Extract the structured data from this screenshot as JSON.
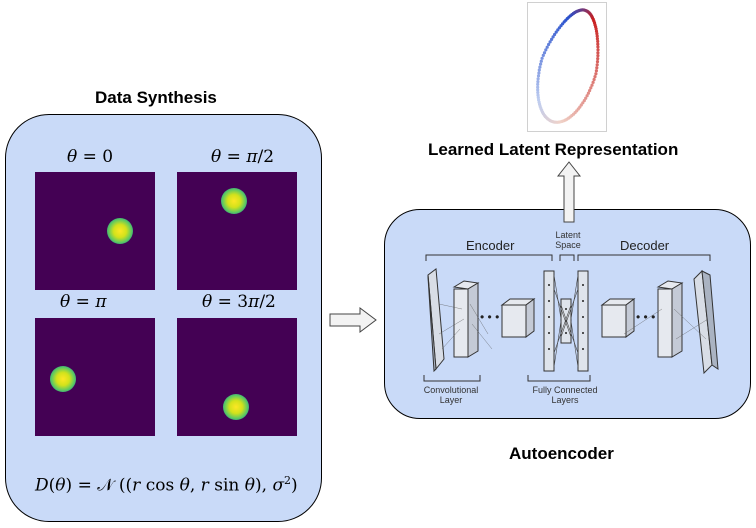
{
  "data_synthesis": {
    "title": "Data Synthesis",
    "panels": [
      {
        "label": "θ = 0"
      },
      {
        "label": "θ = π/2"
      },
      {
        "label": "θ = π"
      },
      {
        "label": "θ = 3π/2"
      }
    ],
    "formula": "D(θ) = 𝒩((r cos θ, r sin θ), σ²)"
  },
  "autoencoder": {
    "title": "Autoencoder",
    "encoder_label": "Encoder",
    "latent_label": "Latent Space",
    "decoder_label": "Decoder",
    "conv_label": "Convolutional Layer",
    "fc_label": "Fully Connected Layers"
  },
  "latent": {
    "title": "Learned Latent Representation"
  },
  "colors": {
    "panel_fill": "#c9daf8",
    "viridis_background": "#440154",
    "viridis_center": "#fde725",
    "latent_red": "#c81d1d",
    "latent_blue": "#2a4fcf"
  }
}
